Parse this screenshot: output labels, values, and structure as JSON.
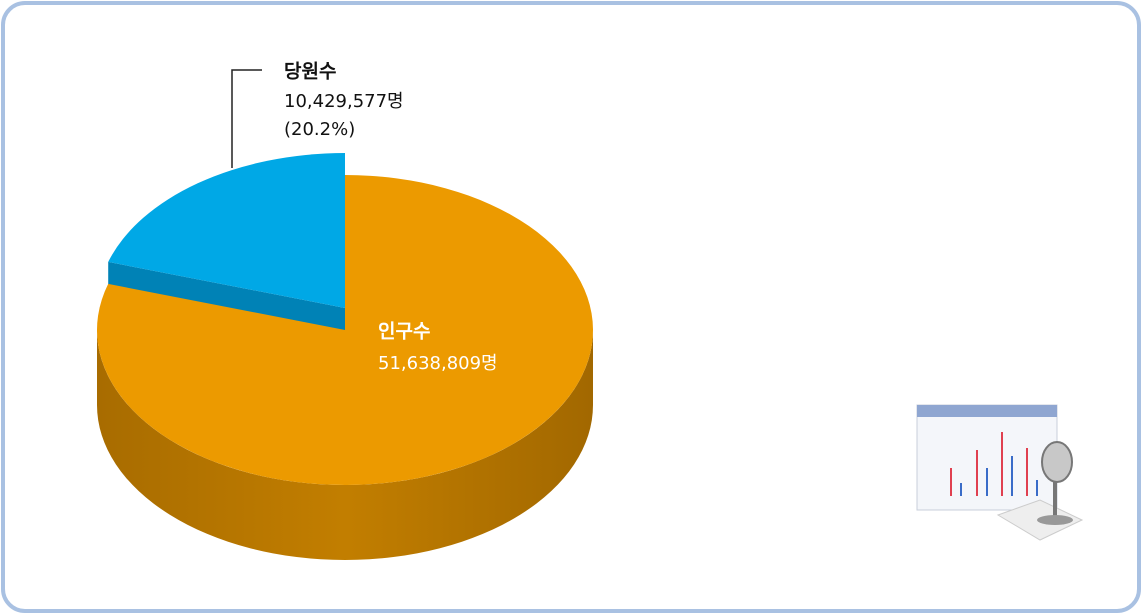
{
  "chart_data": {
    "type": "pie",
    "categories": [
      "당원수",
      "인구수"
    ],
    "values": [
      10429577,
      51638809
    ],
    "value_labels": [
      "10,429,577명",
      "51,638,809명"
    ],
    "percent_labels": [
      "(20.2%)",
      null
    ],
    "colors": [
      "#00a8e6",
      "#ec9a00"
    ]
  }
}
